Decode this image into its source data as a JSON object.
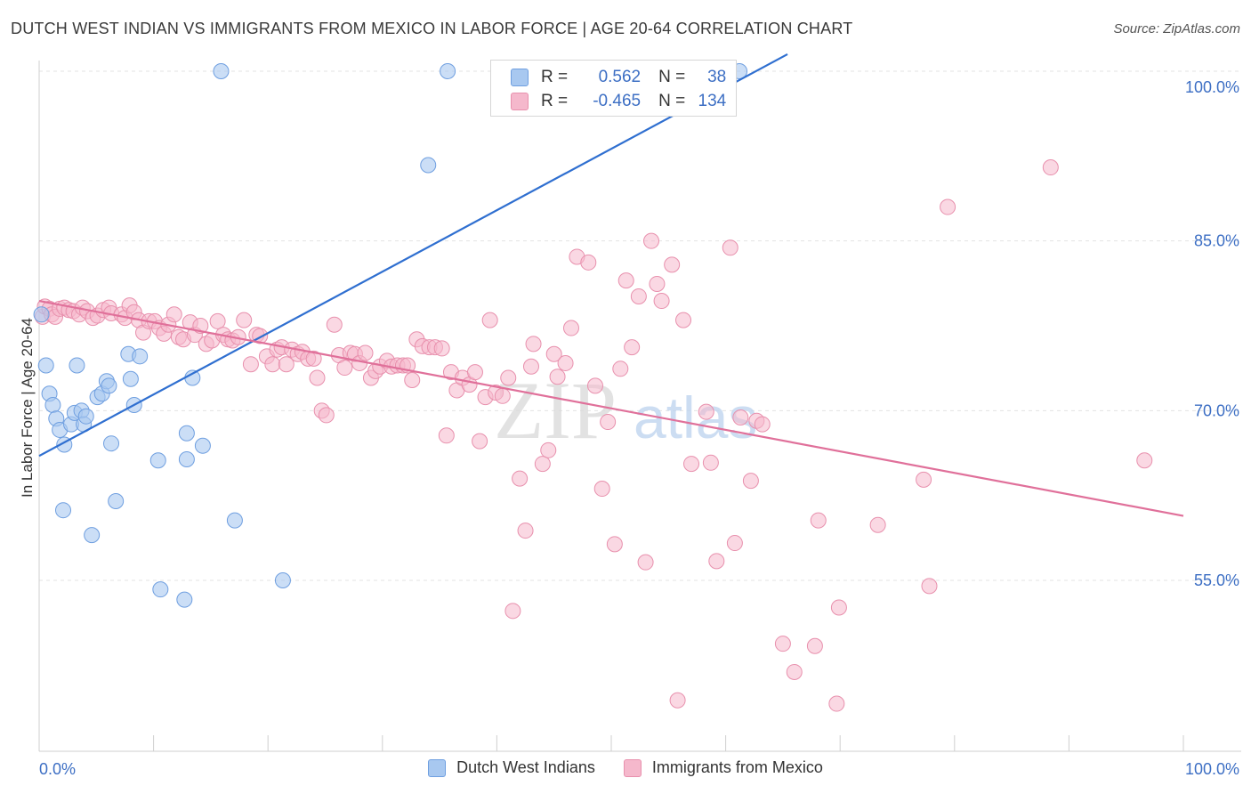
{
  "title": "DUTCH WEST INDIAN VS IMMIGRANTS FROM MEXICO IN LABOR FORCE | AGE 20-64 CORRELATION CHART",
  "source": "Source: ZipAtlas.com",
  "watermark": {
    "zip": "ZIP",
    "atlas": "atlas"
  },
  "legend": {
    "rows": [
      {
        "r_label": "R =",
        "r_value": "0.562",
        "n_label": "N =",
        "n_value": "38",
        "color": "#a8c8f0"
      },
      {
        "r_label": "R =",
        "r_value": "-0.465",
        "n_label": "N =",
        "n_value": "134",
        "color": "#f5b8cc"
      }
    ]
  },
  "colors": {
    "blue_fill": "#a8c8f0",
    "blue_stroke": "#6f9fe0",
    "blue_line": "#2f6fd0",
    "pink_fill": "#f5b8cc",
    "pink_stroke": "#e890ad",
    "pink_line": "#e0709a",
    "tick_text": "#3d6fc4",
    "grid": "#e3e3e3"
  },
  "chart_data": {
    "type": "scatter",
    "title": "DUTCH WEST INDIAN VS IMMIGRANTS FROM MEXICO IN LABOR FORCE | AGE 20-64 CORRELATION CHART",
    "xlabel": "",
    "ylabel": "In Labor Force | Age 20-64",
    "xlim": [
      0,
      100
    ],
    "ylim": [
      38,
      101.5
    ],
    "x_tick_labels": [
      {
        "value": 0,
        "label": "0.0%"
      },
      {
        "value": 100,
        "label": "100.0%"
      }
    ],
    "y_tick_labels": [
      {
        "value": 55,
        "label": "55.0%"
      },
      {
        "value": 70,
        "label": "70.0%"
      },
      {
        "value": 85,
        "label": "85.0%"
      },
      {
        "value": 100,
        "label": "100.0%"
      }
    ],
    "y_grid": [
      55,
      70,
      85,
      100
    ],
    "grid": true,
    "legend_position": "bottom",
    "series": [
      {
        "name": "Dutch West Indians",
        "color": "#a8c8f0",
        "r": 0.562,
        "n": 38,
        "trend": {
          "x": [
            0,
            65.4
          ],
          "y": [
            66.0,
            101.5
          ]
        },
        "points": [
          [
            0.2,
            78.5
          ],
          [
            0.6,
            74.0
          ],
          [
            0.9,
            71.5
          ],
          [
            1.2,
            70.5
          ],
          [
            1.5,
            69.3
          ],
          [
            1.8,
            68.3
          ],
          [
            2.2,
            67.0
          ],
          [
            2.1,
            61.2
          ],
          [
            2.8,
            68.8
          ],
          [
            3.1,
            69.8
          ],
          [
            3.3,
            74.0
          ],
          [
            3.7,
            70.0
          ],
          [
            3.9,
            68.8
          ],
          [
            4.1,
            69.5
          ],
          [
            4.6,
            59.0
          ],
          [
            5.1,
            71.2
          ],
          [
            5.5,
            71.5
          ],
          [
            5.9,
            72.6
          ],
          [
            6.1,
            72.2
          ],
          [
            6.3,
            67.1
          ],
          [
            6.7,
            62.0
          ],
          [
            7.8,
            75.0
          ],
          [
            8.0,
            72.8
          ],
          [
            8.3,
            70.5
          ],
          [
            8.8,
            74.8
          ],
          [
            10.4,
            65.6
          ],
          [
            10.6,
            54.2
          ],
          [
            12.7,
            53.3
          ],
          [
            12.9,
            68.0
          ],
          [
            12.9,
            65.7
          ],
          [
            13.4,
            72.9
          ],
          [
            14.3,
            66.9
          ],
          [
            15.9,
            100.0
          ],
          [
            17.1,
            60.3
          ],
          [
            21.3,
            55.0
          ],
          [
            34.0,
            91.7
          ],
          [
            35.7,
            100.0
          ],
          [
            61.2,
            100.0
          ]
        ]
      },
      {
        "name": "Immigrants from Mexico",
        "color": "#f5b8cc",
        "r": -0.465,
        "n": 134,
        "trend": {
          "x": [
            0,
            100
          ],
          "y": [
            79.7,
            60.7
          ]
        },
        "points": [
          [
            0.3,
            78.3
          ],
          [
            0.5,
            79.2
          ],
          [
            0.9,
            79.0
          ],
          [
            1.1,
            78.5
          ],
          [
            1.4,
            78.3
          ],
          [
            1.8,
            79.0
          ],
          [
            2.2,
            79.1
          ],
          [
            2.6,
            78.9
          ],
          [
            3.0,
            78.8
          ],
          [
            3.5,
            78.5
          ],
          [
            3.8,
            79.1
          ],
          [
            4.2,
            78.8
          ],
          [
            4.7,
            78.2
          ],
          [
            5.1,
            78.4
          ],
          [
            5.6,
            78.9
          ],
          [
            6.1,
            79.1
          ],
          [
            6.3,
            78.6
          ],
          [
            7.2,
            78.5
          ],
          [
            7.5,
            78.2
          ],
          [
            7.9,
            79.3
          ],
          [
            8.3,
            78.7
          ],
          [
            8.7,
            78.0
          ],
          [
            9.1,
            76.9
          ],
          [
            9.6,
            77.9
          ],
          [
            10.1,
            77.9
          ],
          [
            10.5,
            77.3
          ],
          [
            10.9,
            76.8
          ],
          [
            11.3,
            77.6
          ],
          [
            11.8,
            78.5
          ],
          [
            12.2,
            76.5
          ],
          [
            12.6,
            76.3
          ],
          [
            13.2,
            77.8
          ],
          [
            13.6,
            76.7
          ],
          [
            14.1,
            77.5
          ],
          [
            14.6,
            75.9
          ],
          [
            15.1,
            76.2
          ],
          [
            15.6,
            77.9
          ],
          [
            16.1,
            76.7
          ],
          [
            16.5,
            76.3
          ],
          [
            16.9,
            76.2
          ],
          [
            17.4,
            76.5
          ],
          [
            17.9,
            78.0
          ],
          [
            18.5,
            74.1
          ],
          [
            19.0,
            76.7
          ],
          [
            19.3,
            76.6
          ],
          [
            19.9,
            74.8
          ],
          [
            20.4,
            74.1
          ],
          [
            20.8,
            75.4
          ],
          [
            21.2,
            75.6
          ],
          [
            21.6,
            74.1
          ],
          [
            22.1,
            75.4
          ],
          [
            22.6,
            75.0
          ],
          [
            23.0,
            75.2
          ],
          [
            23.5,
            74.6
          ],
          [
            24.0,
            74.6
          ],
          [
            24.3,
            72.9
          ],
          [
            24.7,
            70.0
          ],
          [
            25.1,
            69.6
          ],
          [
            25.8,
            77.6
          ],
          [
            26.2,
            74.9
          ],
          [
            26.7,
            73.8
          ],
          [
            27.2,
            75.1
          ],
          [
            27.6,
            75.0
          ],
          [
            28.0,
            74.2
          ],
          [
            28.5,
            75.1
          ],
          [
            29.0,
            72.9
          ],
          [
            29.4,
            73.5
          ],
          [
            29.8,
            73.9
          ],
          [
            30.4,
            74.4
          ],
          [
            30.8,
            73.9
          ],
          [
            31.3,
            74.0
          ],
          [
            31.8,
            74.0
          ],
          [
            32.2,
            74.0
          ],
          [
            32.6,
            72.7
          ],
          [
            33.0,
            76.3
          ],
          [
            33.5,
            75.7
          ],
          [
            34.1,
            75.6
          ],
          [
            34.6,
            75.6
          ],
          [
            35.2,
            75.5
          ],
          [
            35.6,
            67.8
          ],
          [
            36.0,
            73.4
          ],
          [
            36.5,
            71.8
          ],
          [
            37.0,
            72.9
          ],
          [
            37.6,
            72.3
          ],
          [
            38.1,
            73.4
          ],
          [
            38.5,
            67.3
          ],
          [
            39.0,
            71.2
          ],
          [
            39.4,
            78.0
          ],
          [
            39.9,
            71.6
          ],
          [
            40.5,
            71.3
          ],
          [
            41.0,
            72.9
          ],
          [
            41.4,
            52.3
          ],
          [
            42.0,
            64.0
          ],
          [
            42.5,
            59.4
          ],
          [
            43.0,
            73.9
          ],
          [
            43.2,
            75.9
          ],
          [
            44.0,
            65.3
          ],
          [
            44.5,
            66.5
          ],
          [
            45.0,
            75.0
          ],
          [
            45.3,
            73.0
          ],
          [
            46.0,
            74.2
          ],
          [
            46.5,
            77.3
          ],
          [
            47.0,
            83.6
          ],
          [
            48.0,
            83.1
          ],
          [
            48.6,
            72.2
          ],
          [
            49.2,
            63.1
          ],
          [
            49.7,
            69.0
          ],
          [
            50.3,
            58.2
          ],
          [
            50.8,
            73.7
          ],
          [
            51.3,
            81.5
          ],
          [
            51.8,
            75.6
          ],
          [
            52.4,
            80.1
          ],
          [
            53.0,
            56.6
          ],
          [
            53.5,
            85.0
          ],
          [
            54.0,
            81.2
          ],
          [
            54.4,
            79.7
          ],
          [
            55.3,
            82.9
          ],
          [
            55.8,
            44.4
          ],
          [
            56.3,
            78.0
          ],
          [
            57.0,
            65.3
          ],
          [
            58.3,
            69.9
          ],
          [
            58.7,
            65.4
          ],
          [
            59.2,
            56.7
          ],
          [
            60.4,
            84.4
          ],
          [
            60.8,
            58.3
          ],
          [
            61.3,
            69.4
          ],
          [
            62.2,
            63.8
          ],
          [
            62.7,
            69.1
          ],
          [
            63.2,
            68.8
          ],
          [
            65.0,
            49.4
          ],
          [
            66.0,
            46.9
          ],
          [
            67.8,
            49.2
          ],
          [
            68.1,
            60.3
          ],
          [
            69.7,
            44.1
          ],
          [
            69.9,
            52.6
          ],
          [
            73.3,
            59.9
          ],
          [
            77.3,
            63.9
          ],
          [
            77.8,
            54.5
          ],
          [
            79.4,
            88.0
          ],
          [
            88.4,
            91.5
          ],
          [
            96.6,
            65.6
          ]
        ]
      }
    ]
  },
  "bottom_legend": [
    {
      "label": "Dutch West Indians",
      "color": "#a8c8f0"
    },
    {
      "label": "Immigrants from Mexico",
      "color": "#f5b8cc"
    }
  ]
}
